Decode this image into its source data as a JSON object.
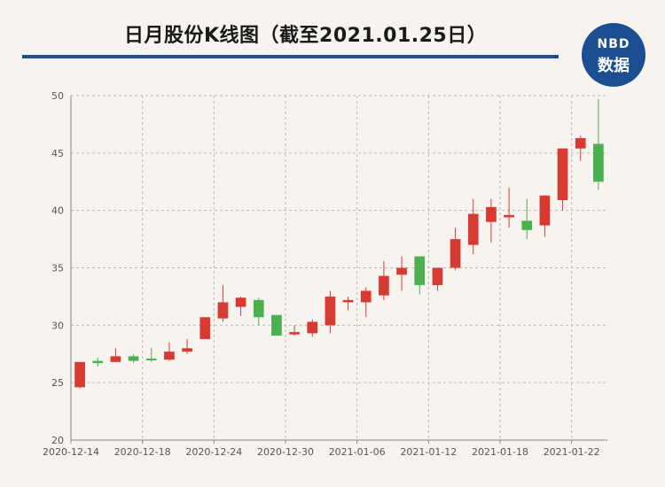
{
  "header": {
    "title": "日月股份K线图（截至2021.01.25日）",
    "logo_top": "NBD",
    "logo_bottom": "数据"
  },
  "colors": {
    "up": "#d73a31",
    "down": "#4caf50",
    "accent": "#1c4e92",
    "grid": "#b9b9b9",
    "background": "#f7f4ef"
  },
  "chart_data": {
    "type": "candlestick",
    "title": "日月股份K线图（截至2021.01.25日）",
    "ylim": [
      20,
      50
    ],
    "yticks": [
      20,
      25,
      30,
      35,
      40,
      45,
      50
    ],
    "xtick_labels": [
      {
        "index": 0,
        "label": "2020-12-14"
      },
      {
        "index": 4,
        "label": "2020-12-18"
      },
      {
        "index": 8,
        "label": "2020-12-24"
      },
      {
        "index": 12,
        "label": "2020-12-30"
      },
      {
        "index": 16,
        "label": "2021-01-06"
      },
      {
        "index": 20,
        "label": "2021-01-12"
      },
      {
        "index": 24,
        "label": "2021-01-18"
      },
      {
        "index": 28,
        "label": "2021-01-22"
      }
    ],
    "candles": [
      {
        "date": "2020-12-14",
        "open": 24.6,
        "close": 26.8,
        "high": 26.8,
        "low": 24.5
      },
      {
        "date": "2020-12-15",
        "open": 26.9,
        "close": 26.7,
        "high": 27.2,
        "low": 26.4
      },
      {
        "date": "2020-12-16",
        "open": 26.8,
        "close": 27.3,
        "high": 28.0,
        "low": 26.8
      },
      {
        "date": "2020-12-17",
        "open": 27.3,
        "close": 26.9,
        "high": 27.5,
        "low": 26.7
      },
      {
        "date": "2020-12-18",
        "open": 27.1,
        "close": 27.0,
        "high": 28.0,
        "low": 26.8
      },
      {
        "date": "2020-12-21",
        "open": 27.0,
        "close": 27.7,
        "high": 28.5,
        "low": 26.9
      },
      {
        "date": "2020-12-22",
        "open": 27.7,
        "close": 28.0,
        "high": 28.8,
        "low": 27.5
      },
      {
        "date": "2020-12-23",
        "open": 28.8,
        "close": 30.7,
        "high": 30.7,
        "low": 28.8
      },
      {
        "date": "2020-12-24",
        "open": 30.6,
        "close": 32.0,
        "high": 33.5,
        "low": 30.3
      },
      {
        "date": "2020-12-25",
        "open": 31.6,
        "close": 32.4,
        "high": 32.5,
        "low": 30.8
      },
      {
        "date": "2020-12-28",
        "open": 32.2,
        "close": 30.7,
        "high": 32.4,
        "low": 30.0
      },
      {
        "date": "2020-12-29",
        "open": 30.9,
        "close": 29.1,
        "high": 30.9,
        "low": 29.1
      },
      {
        "date": "2020-12-30",
        "open": 29.2,
        "close": 29.4,
        "high": 30.0,
        "low": 29.1
      },
      {
        "date": "2020-12-31",
        "open": 29.3,
        "close": 30.3,
        "high": 30.5,
        "low": 29.0
      },
      {
        "date": "2021-01-04",
        "open": 30.0,
        "close": 32.5,
        "high": 33.0,
        "low": 29.3
      },
      {
        "date": "2021-01-05",
        "open": 32.0,
        "close": 32.2,
        "high": 32.5,
        "low": 31.3
      },
      {
        "date": "2021-01-06",
        "open": 32.0,
        "close": 33.0,
        "high": 33.3,
        "low": 30.7
      },
      {
        "date": "2021-01-07",
        "open": 32.6,
        "close": 34.3,
        "high": 35.6,
        "low": 32.2
      },
      {
        "date": "2021-01-08",
        "open": 34.4,
        "close": 35.0,
        "high": 36.0,
        "low": 33.0
      },
      {
        "date": "2021-01-11",
        "open": 36.0,
        "close": 33.5,
        "high": 36.0,
        "low": 32.7
      },
      {
        "date": "2021-01-12",
        "open": 33.5,
        "close": 35.0,
        "high": 35.0,
        "low": 33.0
      },
      {
        "date": "2021-01-13",
        "open": 35.0,
        "close": 37.5,
        "high": 38.5,
        "low": 34.8
      },
      {
        "date": "2021-01-14",
        "open": 37.0,
        "close": 39.7,
        "high": 41.0,
        "low": 36.2
      },
      {
        "date": "2021-01-15",
        "open": 39.0,
        "close": 40.3,
        "high": 41.0,
        "low": 37.2
      },
      {
        "date": "2021-01-18",
        "open": 39.4,
        "close": 39.6,
        "high": 42.0,
        "low": 38.5
      },
      {
        "date": "2021-01-19",
        "open": 39.1,
        "close": 38.3,
        "high": 41.0,
        "low": 37.5
      },
      {
        "date": "2021-01-20",
        "open": 38.7,
        "close": 41.3,
        "high": 41.3,
        "low": 37.7
      },
      {
        "date": "2021-01-21",
        "open": 40.9,
        "close": 45.4,
        "high": 45.4,
        "low": 40.0
      },
      {
        "date": "2021-01-22",
        "open": 45.4,
        "close": 46.3,
        "high": 46.5,
        "low": 44.3
      },
      {
        "date": "2021-01-25",
        "open": 45.8,
        "close": 42.5,
        "high": 49.7,
        "low": 41.8
      }
    ]
  }
}
